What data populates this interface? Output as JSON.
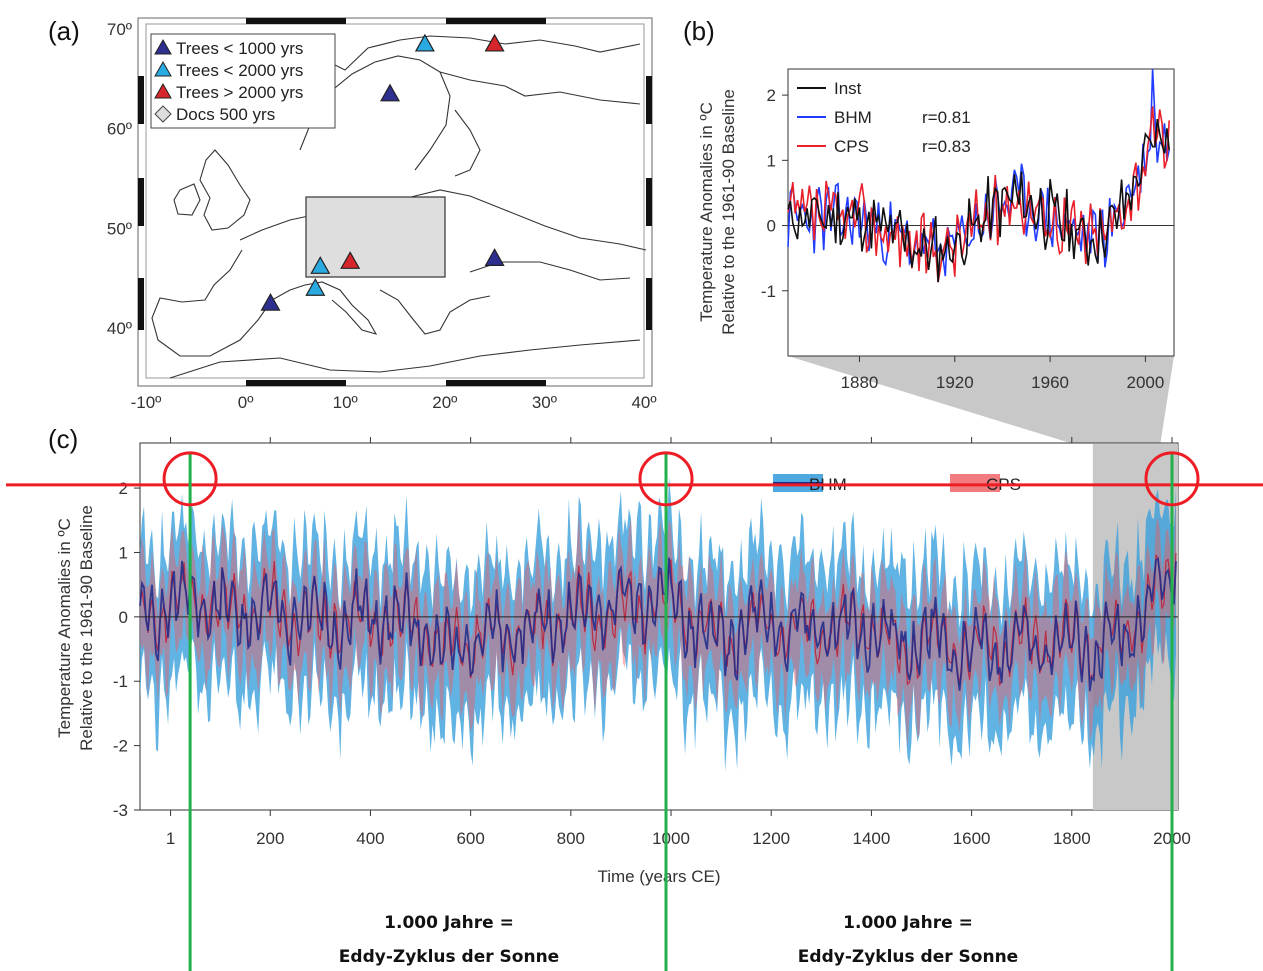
{
  "chart_data": [
    {
      "panel": "(a)",
      "type": "map",
      "x_ticks": [
        "-10º",
        "0º",
        "10º",
        "20º",
        "30º",
        "40º"
      ],
      "y_ticks": [
        "70º",
        "60º",
        "50º",
        "40º"
      ],
      "xlim": [
        -10,
        40
      ],
      "ylim": [
        35,
        70.5
      ],
      "legend": [
        {
          "label": "Trees < 1000 yrs",
          "color": "#2e2f8f",
          "marker": "triangle"
        },
        {
          "label": "Trees < 2000 yrs",
          "color": "#29abe2",
          "marker": "triangle"
        },
        {
          "label": "Trees > 2000 yrs",
          "color": "#d7262b",
          "marker": "triangle"
        },
        {
          "label": "Docs 500 yrs",
          "color": "#dddddd",
          "marker": "diamond"
        }
      ],
      "sites": [
        {
          "lon": 18,
          "lat": 68.5,
          "kind": "Trees < 2000 yrs"
        },
        {
          "lon": 25,
          "lat": 68.5,
          "kind": "Trees > 2000 yrs"
        },
        {
          "lon": 14.5,
          "lat": 63.5,
          "kind": "Trees < 1000 yrs"
        },
        {
          "lon": 25,
          "lat": 47,
          "kind": "Trees < 1000 yrs"
        },
        {
          "lon": 7.5,
          "lat": 46.2,
          "kind": "Trees < 2000 yrs"
        },
        {
          "lon": 10.5,
          "lat": 46.7,
          "kind": "Trees > 2000 yrs"
        },
        {
          "lon": 7,
          "lat": 44,
          "kind": "Trees < 2000 yrs"
        },
        {
          "lon": 2.5,
          "lat": 42.5,
          "kind": "Trees < 1000 yrs"
        }
      ],
      "docs_region": {
        "lon": [
          6,
          19.5
        ],
        "lat": [
          45,
          51
        ]
      }
    },
    {
      "panel": "(b)",
      "type": "line",
      "ylabel": [
        "Temperature Anomalies in ºC",
        "Relative to the 1961-90 Baseline"
      ],
      "x_ticks": [
        "1880",
        "1920",
        "1960",
        "2000"
      ],
      "y_ticks": [
        "2",
        "1",
        "0",
        "-1"
      ],
      "xlim": [
        1850,
        2012
      ],
      "ylim": [
        -2,
        2.4
      ],
      "series": [
        {
          "name": "Inst",
          "color": "#111111",
          "r": ""
        },
        {
          "name": "BHM",
          "color": "#1f3cff",
          "r": "r=0.81"
        },
        {
          "name": "CPS",
          "color": "#e8202a",
          "r": "r=0.83"
        }
      ],
      "smooth_trend": {
        "x": [
          1850,
          1880,
          1900,
          1910,
          1920,
          1935,
          1945,
          1960,
          1975,
          1985,
          1995,
          2000,
          2005,
          2010
        ],
        "y": [
          0.15,
          0.1,
          -0.25,
          -0.4,
          -0.3,
          0.2,
          0.45,
          0.15,
          -0.2,
          -0.05,
          0.6,
          1.0,
          1.4,
          1.3
        ]
      }
    },
    {
      "panel": "(c)",
      "type": "line",
      "title": "",
      "xlabel": "Time (years CE)",
      "ylabel": [
        "Temperature Anomalies in ºC",
        "Relative to the 1961-90 Baseline"
      ],
      "x_ticks": [
        "1",
        "200",
        "400",
        "600",
        "800",
        "1000",
        "1200",
        "1400",
        "1600",
        "1800",
        "2000"
      ],
      "y_ticks": [
        "2",
        "1",
        "0",
        "-1",
        "-2",
        "-3"
      ],
      "xlim": [
        -60,
        2012
      ],
      "ylim": [
        -3,
        2.7
      ],
      "series": [
        {
          "name": "BHM",
          "color": "#3aa0dc",
          "band_color": "#3aa0dc",
          "median_color": "#1c2a8c"
        },
        {
          "name": "CPS",
          "color": "#e8202a",
          "band_color": "#ee5a5f"
        }
      ],
      "smooth_trend": {
        "x": [
          -60,
          40,
          100,
          200,
          300,
          400,
          500,
          540,
          600,
          700,
          800,
          900,
          950,
          1000,
          1100,
          1150,
          1200,
          1300,
          1400,
          1450,
          1500,
          1600,
          1700,
          1800,
          1850,
          1900,
          1950,
          2000,
          2012
        ],
        "y": [
          0.0,
          0.25,
          0.1,
          0.15,
          -0.1,
          0.05,
          -0.15,
          -0.6,
          -0.3,
          -0.2,
          0.0,
          0.15,
          0.2,
          0.25,
          -0.4,
          -0.1,
          -0.1,
          -0.2,
          -0.1,
          -0.5,
          -0.3,
          -0.5,
          -0.4,
          -0.4,
          -0.5,
          -0.2,
          0.1,
          0.7,
          1.3
        ]
      },
      "highlight_span": [
        1842,
        2012
      ]
    }
  ],
  "annotations": {
    "threshold_y": 2.05,
    "threshold_color": "#ee1c25",
    "cycle_years": [
      40,
      990,
      2000
    ],
    "line_color": "#22b24c",
    "notes": [
      [
        "1.000 Jahre =",
        "Eddy-Zyklus der Sonne"
      ],
      [
        "1.000 Jahre =",
        "Eddy-Zyklus der Sonne"
      ]
    ]
  }
}
